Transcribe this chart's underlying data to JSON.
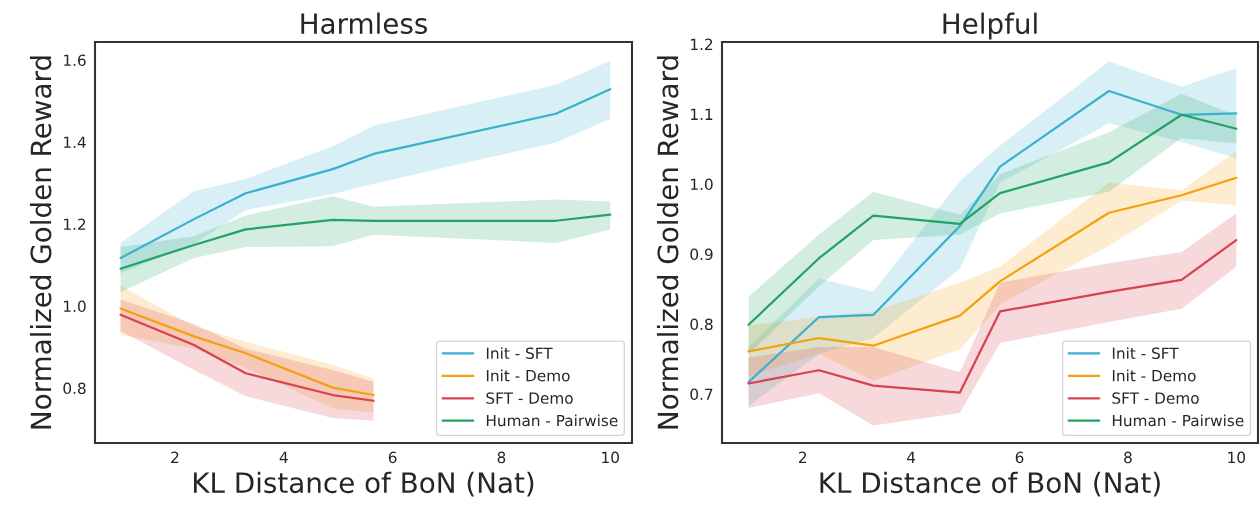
{
  "chart_data": [
    {
      "type": "line",
      "title": "Harmless",
      "xlabel": "KL Distance of BoN (Nat)",
      "ylabel": "Normalized Golden Reward",
      "x": [
        1.0,
        2.35,
        3.3,
        4.9,
        5.65,
        9.0,
        10.0
      ],
      "xlim": [
        0.53,
        10.4
      ],
      "xticks": [
        2,
        4,
        6,
        8,
        10
      ],
      "ylim": [
        0.666,
        1.644
      ],
      "yticks": [
        {
          "value": 0.8,
          "label": "0.8"
        },
        {
          "value": 1.0,
          "label": "1.0"
        },
        {
          "value": 1.2,
          "label": "1.2"
        },
        {
          "value": 1.4,
          "label": "1.4"
        },
        {
          "value": 1.6,
          "label": "1.6"
        }
      ],
      "grid": false,
      "legend": "bottom right",
      "series": [
        {
          "name": "Init - SFT",
          "color": "#3ab0cf",
          "values": [
            1.117,
            1.212,
            1.275,
            1.334,
            1.371,
            1.469,
            1.529
          ],
          "lower": [
            1.08,
            1.152,
            1.234,
            1.273,
            1.298,
            1.399,
            1.456
          ],
          "upper": [
            1.154,
            1.28,
            1.31,
            1.39,
            1.44,
            1.54,
            1.598
          ]
        },
        {
          "name": "Init - Demo",
          "color": "#f5a00f",
          "values": [
            0.994,
            0.926,
            0.885,
            0.801,
            0.783,
            null,
            null
          ],
          "lower": [
            0.93,
            0.896,
            0.849,
            0.75,
            0.74,
            null,
            null
          ],
          "upper": [
            1.05,
            0.951,
            0.913,
            0.857,
            0.823,
            null,
            null
          ]
        },
        {
          "name": "SFT - Demo",
          "color": "#d8414f",
          "values": [
            0.979,
            0.905,
            0.836,
            0.783,
            0.769,
            null,
            null
          ],
          "lower": [
            0.939,
            0.844,
            0.78,
            0.727,
            0.72,
            null,
            null
          ],
          "upper": [
            1.016,
            0.956,
            0.896,
            0.844,
            0.815,
            null,
            null
          ]
        },
        {
          "name": "Human - Pairwise",
          "color": "#22a363",
          "values": [
            1.091,
            1.149,
            1.187,
            1.21,
            1.208,
            1.208,
            1.223
          ],
          "lower": [
            1.034,
            1.117,
            1.144,
            1.146,
            1.174,
            1.154,
            1.187
          ],
          "upper": [
            1.144,
            1.17,
            1.221,
            1.268,
            1.242,
            1.26,
            1.255
          ]
        }
      ]
    },
    {
      "type": "line",
      "title": "Helpful",
      "xlabel": "KL Distance of BoN (Nat)",
      "ylabel": "Normalized Golden Reward",
      "x": [
        1.0,
        2.3,
        3.3,
        4.9,
        5.64,
        7.65,
        8.99,
        10.0
      ],
      "xlim": [
        0.51,
        10.4
      ],
      "xticks": [
        2,
        4,
        6,
        8,
        10
      ],
      "ylim": [
        0.63,
        1.203
      ],
      "yticks": [
        {
          "value": 0.7,
          "label": "0.7"
        },
        {
          "value": 0.8,
          "label": "0.8"
        },
        {
          "value": 0.9,
          "label": "0.9"
        },
        {
          "value": 1.0,
          "label": "1.0"
        },
        {
          "value": 1.1,
          "label": "1.1"
        },
        {
          "value": 1.2,
          "label": "1.2"
        }
      ],
      "grid": false,
      "legend": "bottom right",
      "series": [
        {
          "name": "Init - SFT",
          "color": "#3ab0cf",
          "values": [
            0.717,
            0.81,
            0.813,
            0.94,
            1.025,
            1.133,
            1.099,
            1.101
          ],
          "lower": [
            0.683,
            0.757,
            0.78,
            0.879,
            1.002,
            1.087,
            1.06,
            1.037
          ],
          "upper": [
            0.767,
            0.865,
            0.846,
            1.004,
            1.055,
            1.175,
            1.139,
            1.166
          ]
        },
        {
          "name": "Init - Demo",
          "color": "#f5a00f",
          "values": [
            0.761,
            0.78,
            0.769,
            0.812,
            0.861,
            0.959,
            0.984,
            1.009
          ],
          "lower": [
            0.726,
            0.757,
            0.719,
            0.764,
            0.828,
            0.912,
            0.976,
            0.97
          ],
          "upper": [
            0.798,
            0.81,
            0.818,
            0.859,
            0.882,
            1.002,
            0.991,
            1.047
          ]
        },
        {
          "name": "SFT - Demo",
          "color": "#d8414f",
          "values": [
            0.715,
            0.734,
            0.712,
            0.702,
            0.818,
            0.846,
            0.863,
            0.92
          ],
          "lower": [
            0.68,
            0.701,
            0.655,
            0.673,
            0.773,
            0.803,
            0.822,
            0.882
          ],
          "upper": [
            0.752,
            0.767,
            0.767,
            0.731,
            0.859,
            0.887,
            0.903,
            0.958
          ]
        },
        {
          "name": "Human - Pairwise",
          "color": "#22a363",
          "values": [
            0.799,
            0.894,
            0.955,
            0.943,
            0.987,
            1.031,
            1.099,
            1.079
          ],
          "lower": [
            0.757,
            0.854,
            0.92,
            0.928,
            0.958,
            0.989,
            1.066,
            1.058
          ],
          "upper": [
            0.839,
            0.928,
            0.989,
            0.956,
            1.014,
            1.074,
            1.129,
            1.098
          ]
        }
      ]
    }
  ]
}
